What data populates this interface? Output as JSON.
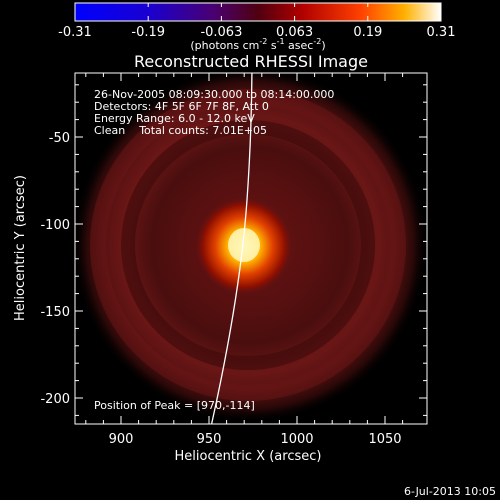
{
  "colorbar": {
    "ticks": [
      "-0.31",
      "-0.19",
      "-0.063",
      "0.063",
      "0.19",
      "0.31"
    ],
    "unit_parts": [
      "(photons cm",
      "-2",
      " s",
      "-1",
      " asec",
      "-2",
      ")"
    ]
  },
  "image": {
    "title": "Reconstructed RHESSI Image",
    "info_lines": [
      "26-Nov-2005 08:09:30.000 to 08:14:00.000",
      "Detectors: 4F 5F 6F 7F 8F, Att 0",
      "Energy Range: 6.0 - 12.0 keV",
      "Clean    Total counts: 7.01E+05"
    ],
    "peak_label": "Position of Peak = [970,-114]",
    "x_axis_label": "Heliocentric X (arcsec)",
    "y_axis_label": "Heliocentric Y (arcsec)",
    "x_ticks": [
      "900",
      "950",
      "1000",
      "1050"
    ],
    "y_ticks": [
      "-50",
      "-100",
      "-150",
      "-200"
    ],
    "timestamp": "6-Jul-2013 10:05"
  },
  "colors": {
    "background": "#000000",
    "axes": "#ffffff",
    "limb": "#ffffff"
  }
}
